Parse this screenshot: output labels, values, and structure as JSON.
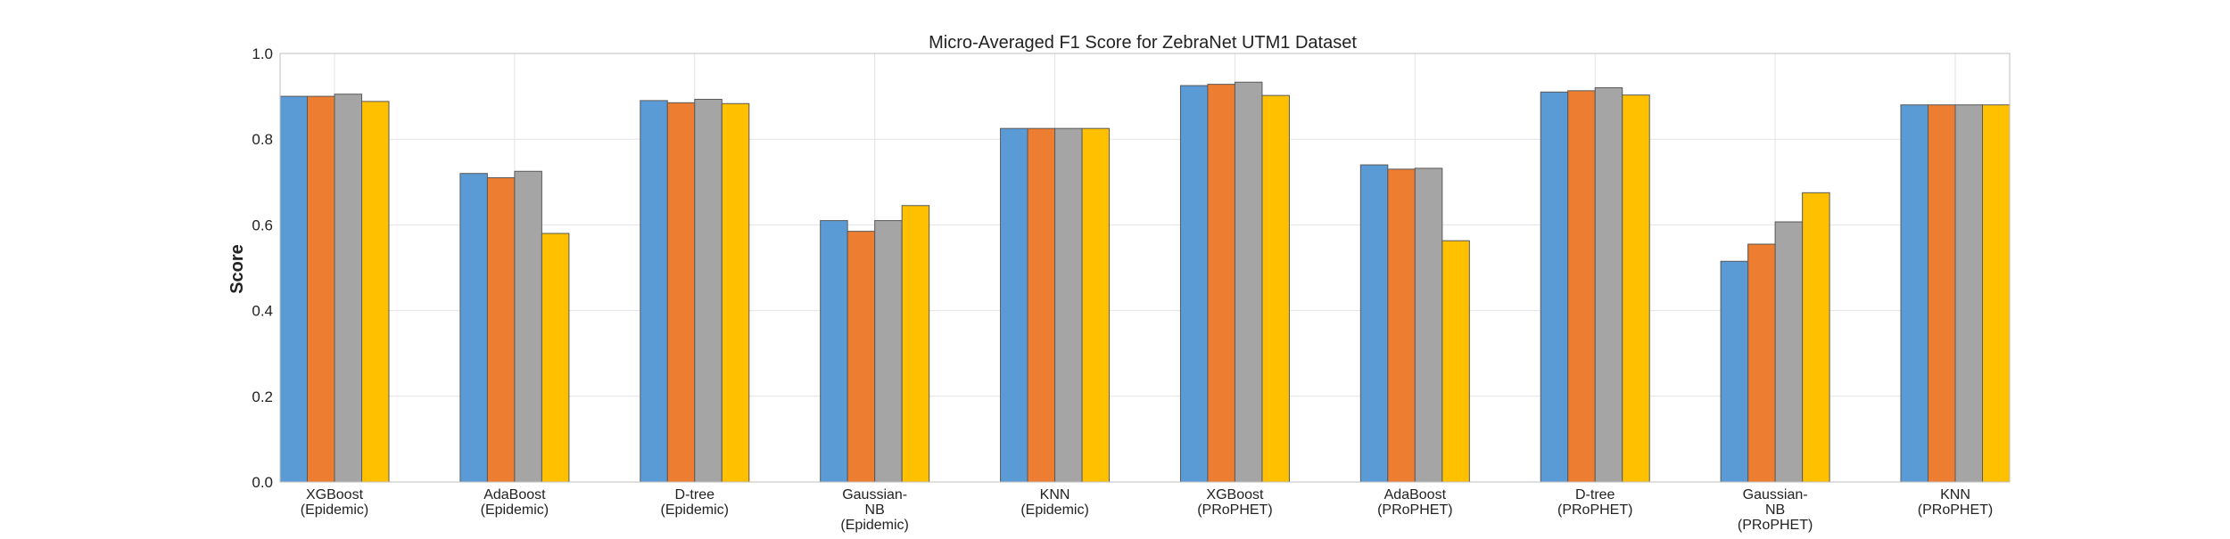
{
  "chart_data": {
    "type": "bar",
    "title": "Micro-Averaged F1 Score for ZebraNet UTM1 Dataset",
    "xlabel": "",
    "ylabel": "Score",
    "ylim": [
      0,
      1.0
    ],
    "yticks": [
      "0.0",
      "0.2",
      "0.4",
      "0.6",
      "0.8",
      "1.0"
    ],
    "grid": true,
    "legend": "none",
    "categories": [
      [
        "XGBoost",
        "(Epidemic)"
      ],
      [
        "AdaBoost",
        "(Epidemic)"
      ],
      [
        "D-tree",
        "(Epidemic)"
      ],
      [
        "Gaussian-",
        "NB",
        "(Epidemic)"
      ],
      [
        "KNN",
        "(Epidemic)"
      ],
      [
        "XGBoost",
        "(PRoPHET)"
      ],
      [
        "AdaBoost",
        "(PRoPHET)"
      ],
      [
        "D-tree",
        "(PRoPHET)"
      ],
      [
        "Gaussian-",
        "NB",
        "(PRoPHET)"
      ],
      [
        "KNN",
        "(PRoPHET)"
      ]
    ],
    "series": [
      {
        "color": "#5b9bd5",
        "values": [
          0.9,
          0.72,
          0.89,
          0.61,
          0.825,
          0.925,
          0.74,
          0.91,
          0.515,
          0.88
        ]
      },
      {
        "color": "#ed7d31",
        "values": [
          0.9,
          0.71,
          0.885,
          0.585,
          0.825,
          0.928,
          0.73,
          0.913,
          0.555,
          0.88
        ]
      },
      {
        "color": "#a5a5a5",
        "values": [
          0.905,
          0.725,
          0.893,
          0.61,
          0.825,
          0.933,
          0.732,
          0.92,
          0.607,
          0.88
        ]
      },
      {
        "color": "#ffc000",
        "values": [
          0.888,
          0.58,
          0.883,
          0.645,
          0.825,
          0.902,
          0.563,
          0.903,
          0.675,
          0.88
        ]
      }
    ]
  }
}
